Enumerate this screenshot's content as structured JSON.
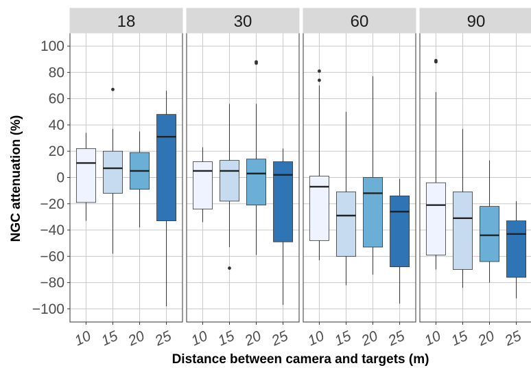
{
  "chart_data": {
    "type": "boxplot",
    "xlabel": "Distance between camera and targets (m)",
    "ylabel": "NGC attenuation (%)",
    "ylim": [
      -110,
      110
    ],
    "y_ticks": [
      "100",
      "80",
      "60",
      "40",
      "20",
      "0",
      "−20",
      "−40",
      "−60",
      "−80",
      "−100"
    ],
    "y_tick_values": [
      100,
      80,
      60,
      40,
      20,
      0,
      -20,
      -40,
      -60,
      -80,
      -100
    ],
    "grid": true,
    "categories": [
      "10",
      "15",
      "20",
      "25"
    ],
    "fill_colors": [
      "#eff3ff",
      "#c6dbef",
      "#6baed6",
      "#2f75b6"
    ],
    "panels": [
      {
        "label": "18",
        "boxes": [
          {
            "category": "10",
            "whisker_low": -33,
            "q1": -19,
            "median": 11,
            "q3": 22,
            "whisker_high": 34,
            "outliers": []
          },
          {
            "category": "15",
            "whisker_low": -58,
            "q1": -12,
            "median": 7,
            "q3": 20,
            "whisker_high": 37,
            "outliers": [
              67
            ]
          },
          {
            "category": "20",
            "whisker_low": -38,
            "q1": -9,
            "median": 5,
            "q3": 19,
            "whisker_high": 35,
            "outliers": []
          },
          {
            "category": "25",
            "whisker_low": -98,
            "q1": -33,
            "median": 31,
            "q3": 48,
            "whisker_high": 66,
            "outliers": []
          }
        ]
      },
      {
        "label": "30",
        "boxes": [
          {
            "category": "10",
            "whisker_low": -34,
            "q1": -24,
            "median": 5,
            "q3": 12,
            "whisker_high": 23,
            "outliers": []
          },
          {
            "category": "15",
            "whisker_low": -53,
            "q1": -18,
            "median": 5,
            "q3": 13,
            "whisker_high": 56,
            "outliers": [
              -69
            ]
          },
          {
            "category": "20",
            "whisker_low": -59,
            "q1": -21,
            "median": 3,
            "q3": 14,
            "whisker_high": 56,
            "outliers": [
              87,
              88
            ]
          },
          {
            "category": "25",
            "whisker_low": -97,
            "q1": -49,
            "median": 2,
            "q3": 12,
            "whisker_high": 22,
            "outliers": []
          }
        ]
      },
      {
        "label": "60",
        "boxes": [
          {
            "category": "10",
            "whisker_low": -63,
            "q1": -48,
            "median": -7,
            "q3": 1,
            "whisker_high": 70,
            "outliers": [
              74,
              81
            ]
          },
          {
            "category": "15",
            "whisker_low": -82,
            "q1": -60,
            "median": -29,
            "q3": -11,
            "whisker_high": 50,
            "outliers": []
          },
          {
            "category": "20",
            "whisker_low": -74,
            "q1": -53,
            "median": -12,
            "q3": 0,
            "whisker_high": 77,
            "outliers": []
          },
          {
            "category": "25",
            "whisker_low": -96,
            "q1": -68,
            "median": -26,
            "q3": -14,
            "whisker_high": -1,
            "outliers": []
          }
        ]
      },
      {
        "label": "90",
        "boxes": [
          {
            "category": "10",
            "whisker_low": -70,
            "q1": -59,
            "median": -21,
            "q3": -4,
            "whisker_high": 65,
            "outliers": [
              88,
              89
            ]
          },
          {
            "category": "15",
            "whisker_low": -84,
            "q1": -70,
            "median": -31,
            "q3": -11,
            "whisker_high": 37,
            "outliers": []
          },
          {
            "category": "20",
            "whisker_low": -80,
            "q1": -64,
            "median": -44,
            "q3": -22,
            "whisker_high": 13,
            "outliers": []
          },
          {
            "category": "25",
            "whisker_low": -92,
            "q1": -76,
            "median": -43,
            "q3": -33,
            "whisker_high": -18,
            "outliers": []
          }
        ]
      }
    ]
  }
}
